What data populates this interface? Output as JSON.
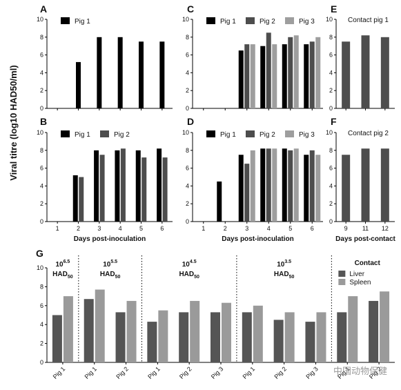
{
  "figure": {
    "y_axis_label": "Viral titre (log10 HAD50/ml)",
    "colors": {
      "pig1": "#000000",
      "pig2": "#4d4d4d",
      "pig3": "#9e9e9e",
      "liver": "#555555",
      "spleen": "#9a9a9a"
    },
    "watermark": "中国动物保健"
  },
  "chart_data": [
    {
      "panel": "A",
      "type": "bar",
      "ylim": [
        0,
        10
      ],
      "yticks": [
        0,
        2,
        4,
        6,
        8,
        10
      ],
      "categories": [
        "1",
        "2",
        "3",
        "4",
        "5",
        "6"
      ],
      "xlabel": "",
      "series": [
        {
          "name": "Pig 1",
          "values": [
            null,
            5.2,
            8.0,
            8.0,
            7.5,
            7.5
          ]
        }
      ]
    },
    {
      "panel": "B",
      "type": "bar",
      "ylim": [
        0,
        10
      ],
      "yticks": [
        0,
        2,
        4,
        6,
        8,
        10
      ],
      "categories": [
        "1",
        "2",
        "3",
        "4",
        "5",
        "6"
      ],
      "xlabel": "Days post-inoculation",
      "series": [
        {
          "name": "Pig 1",
          "values": [
            null,
            5.2,
            8.0,
            8.0,
            8.0,
            8.2
          ]
        },
        {
          "name": "Pig 2",
          "values": [
            null,
            5.0,
            7.5,
            8.2,
            7.2,
            7.2
          ]
        }
      ]
    },
    {
      "panel": "C",
      "type": "bar",
      "ylim": [
        0,
        10
      ],
      "yticks": [
        0,
        2,
        4,
        6,
        8,
        10
      ],
      "categories": [
        "1",
        "2",
        "3",
        "4",
        "5",
        "6"
      ],
      "xlabel": "",
      "series": [
        {
          "name": "Pig 1",
          "values": [
            null,
            null,
            6.5,
            7.0,
            7.2,
            7.2
          ]
        },
        {
          "name": "Pig 2",
          "values": [
            null,
            null,
            7.2,
            8.5,
            8.0,
            7.5
          ]
        },
        {
          "name": "Pig 3",
          "values": [
            null,
            null,
            7.2,
            7.2,
            8.2,
            8.0
          ]
        }
      ]
    },
    {
      "panel": "D",
      "type": "bar",
      "ylim": [
        0,
        10
      ],
      "yticks": [
        0,
        2,
        4,
        6,
        8,
        10
      ],
      "categories": [
        "1",
        "2",
        "3",
        "4",
        "5",
        "6"
      ],
      "xlabel": "Days post-inoculation",
      "series": [
        {
          "name": "Pig 1",
          "values": [
            null,
            4.5,
            7.5,
            8.2,
            8.2,
            7.5
          ]
        },
        {
          "name": "Pig 2",
          "values": [
            null,
            null,
            6.5,
            8.2,
            8.0,
            8.0
          ]
        },
        {
          "name": "Pig 3",
          "values": [
            null,
            null,
            8.0,
            8.2,
            8.2,
            7.5
          ]
        }
      ]
    },
    {
      "panel": "E",
      "type": "bar",
      "ylim": [
        0,
        10
      ],
      "yticks": [
        0,
        2,
        4,
        6,
        8,
        10
      ],
      "title": "Contact pig 1",
      "categories": [
        "9",
        "11",
        "12"
      ],
      "xlabel": "",
      "series": [
        {
          "name": "Contact pig 1",
          "values": [
            7.5,
            8.2,
            8.0
          ]
        }
      ]
    },
    {
      "panel": "F",
      "type": "bar",
      "ylim": [
        0,
        10
      ],
      "yticks": [
        0,
        2,
        4,
        6,
        8,
        10
      ],
      "title": "Contact pig 2",
      "categories": [
        "9",
        "11",
        "12"
      ],
      "xlabel": "Days post-contact",
      "series": [
        {
          "name": "Contact pig 2",
          "values": [
            7.5,
            8.2,
            8.2
          ]
        }
      ]
    },
    {
      "panel": "G",
      "type": "bar",
      "ylim": [
        0,
        10
      ],
      "yticks": [
        0,
        2,
        4,
        6,
        8,
        10
      ],
      "categories": [
        "Pig 1",
        "Pig 1",
        "Pig 2",
        "Pig 1",
        "Pig 2",
        "Pig 3",
        "Pig 1",
        "Pig 2",
        "Pig 3",
        "Pig 1",
        "Pig 2"
      ],
      "groups": [
        {
          "label": "10",
          "sup": "6.5",
          "unit": "HAD",
          "sub": "50",
          "count": 1
        },
        {
          "label": "10",
          "sup": "5.5",
          "unit": "HAD",
          "sub": "50",
          "count": 2
        },
        {
          "label": "10",
          "sup": "4.5",
          "unit": "HAD",
          "sub": "50",
          "count": 3
        },
        {
          "label": "10",
          "sup": "3.5",
          "unit": "HAD",
          "sub": "50",
          "count": 3
        },
        {
          "label": "Contact",
          "sup": "",
          "unit": "",
          "sub": "",
          "count": 2
        }
      ],
      "series": [
        {
          "name": "Liver",
          "values": [
            5.0,
            6.7,
            5.3,
            4.3,
            5.3,
            5.3,
            5.3,
            4.5,
            4.3,
            5.3,
            6.5
          ]
        },
        {
          "name": "Spleen",
          "values": [
            7.0,
            7.7,
            6.5,
            5.5,
            6.5,
            6.3,
            6.0,
            5.3,
            5.3,
            7.0,
            7.5
          ]
        }
      ]
    }
  ]
}
